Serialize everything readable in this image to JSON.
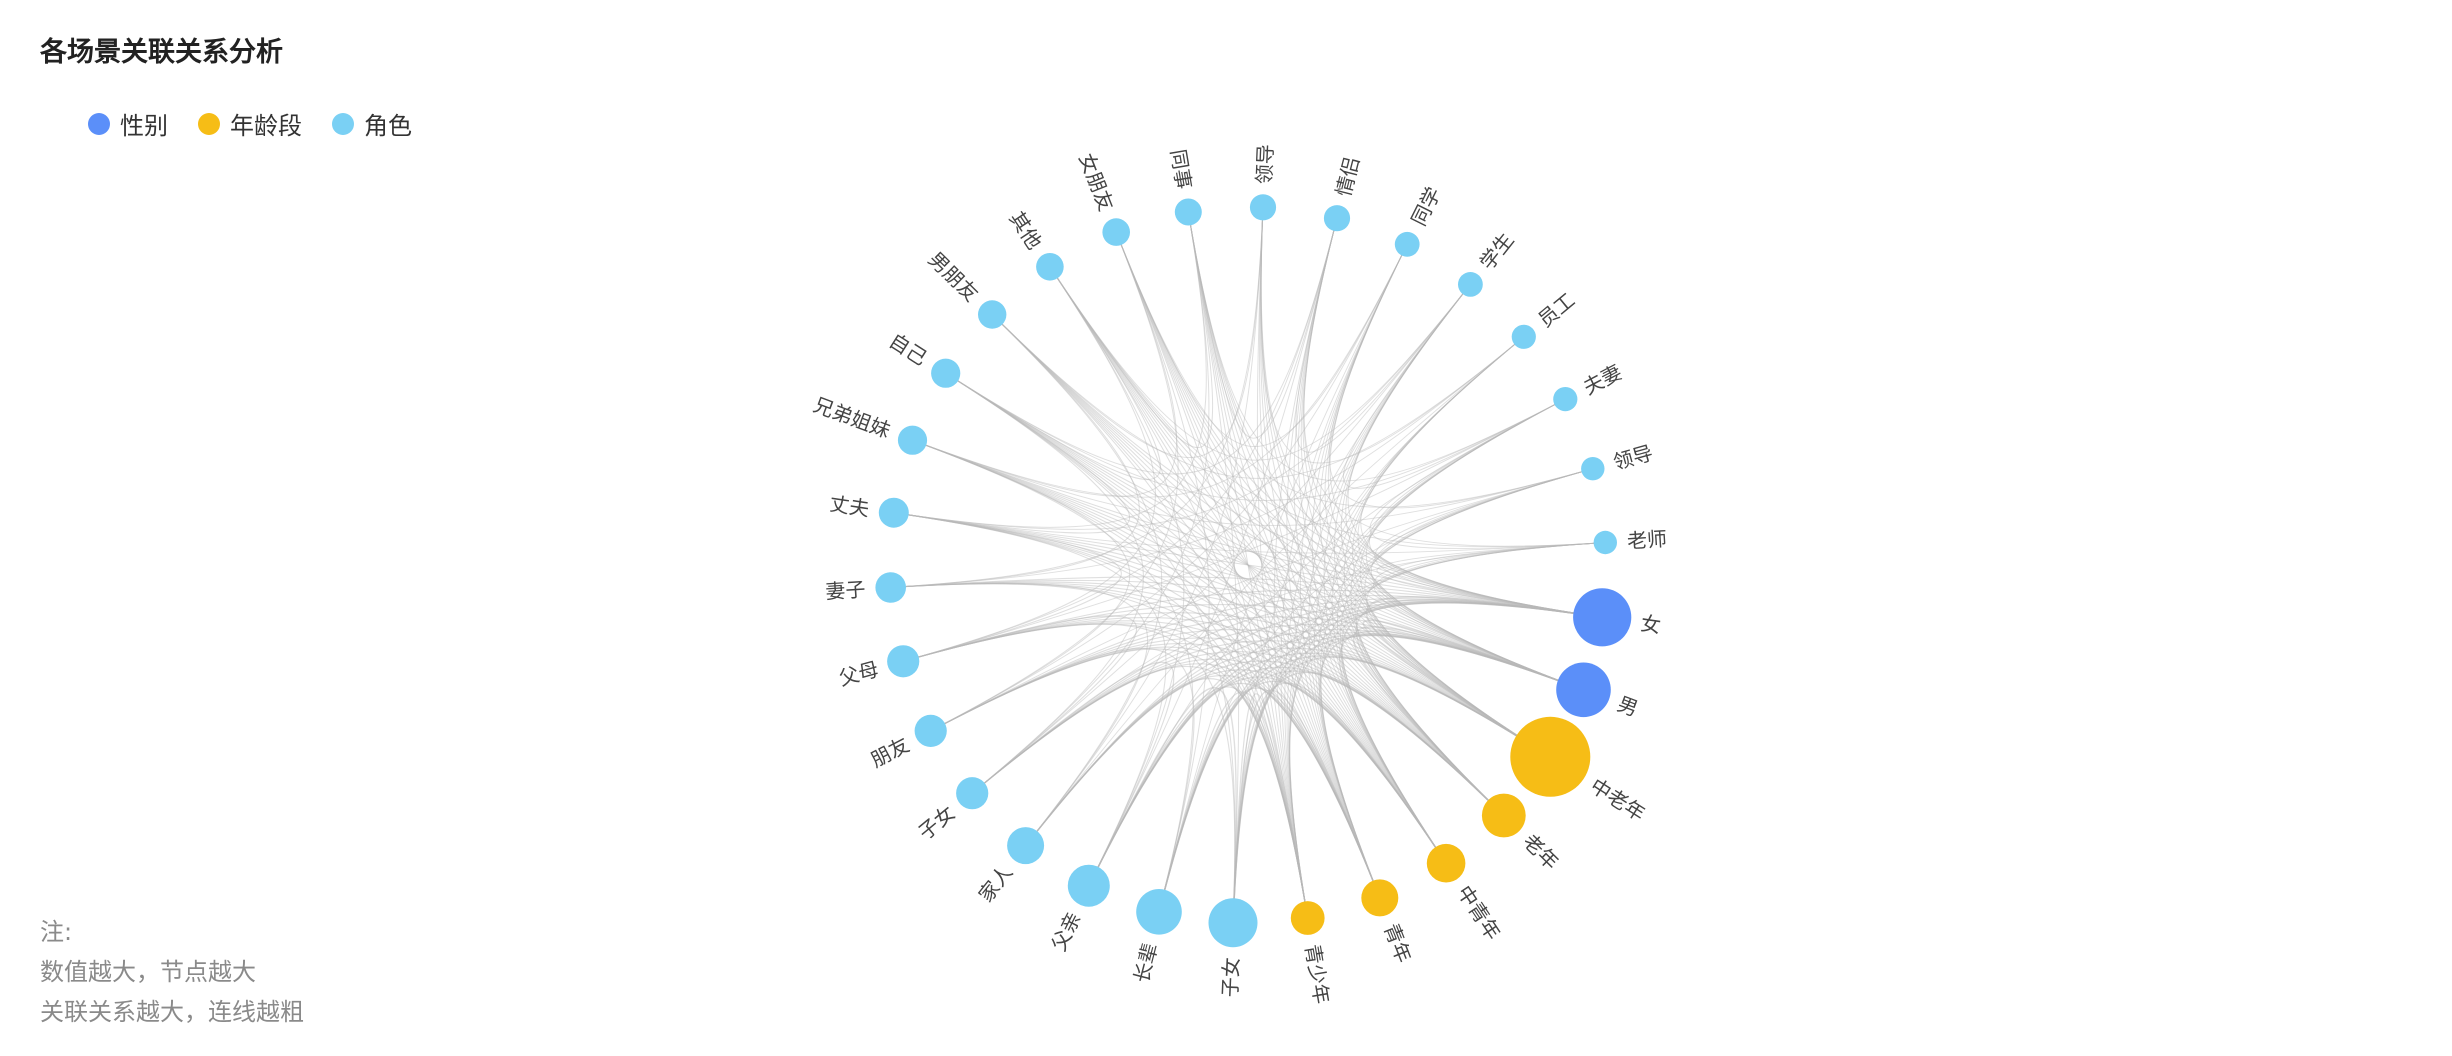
{
  "title": "各场景关联关系分析",
  "legend": {
    "items": [
      {
        "label": "性别",
        "color": "#5b8ff9"
      },
      {
        "label": "年龄段",
        "color": "#f6bd16"
      },
      {
        "label": "角色",
        "color": "#7ad0f4"
      }
    ]
  },
  "notes": {
    "heading": "注:",
    "line1": "数值越大，节点越大",
    "line2": "关联关系越大，连线越粗"
  },
  "chart_data": {
    "type": "chord",
    "title": "各场景关联关系分析",
    "categories": [
      "性别",
      "年龄段",
      "角色"
    ],
    "nodes": [
      {
        "name": "女",
        "category": "性别",
        "value": 56
      },
      {
        "name": "男",
        "category": "性别",
        "value": 52
      },
      {
        "name": "中老年",
        "category": "年龄段",
        "value": 78
      },
      {
        "name": "老年",
        "category": "年龄段",
        "value": 40
      },
      {
        "name": "中青年",
        "category": "年龄段",
        "value": 34
      },
      {
        "name": "青年",
        "category": "年龄段",
        "value": 32
      },
      {
        "name": "青少年",
        "category": "年龄段",
        "value": 28
      },
      {
        "name": "子女",
        "category": "角色",
        "value": 46
      },
      {
        "name": "长辈",
        "category": "角色",
        "value": 42
      },
      {
        "name": "父亲",
        "category": "角色",
        "value": 38
      },
      {
        "name": "家人",
        "category": "角色",
        "value": 32
      },
      {
        "name": "子女",
        "category": "角色",
        "value": 26
      },
      {
        "name": "朋友",
        "category": "角色",
        "value": 26
      },
      {
        "name": "父母",
        "category": "角色",
        "value": 26
      },
      {
        "name": "妻子",
        "category": "角色",
        "value": 24
      },
      {
        "name": "丈夫",
        "category": "角色",
        "value": 23
      },
      {
        "name": "兄弟姐妹",
        "category": "角色",
        "value": 22
      },
      {
        "name": "自己",
        "category": "角色",
        "value": 22
      },
      {
        "name": "男朋友",
        "category": "角色",
        "value": 21
      },
      {
        "name": "其他",
        "category": "角色",
        "value": 20
      },
      {
        "name": "女朋友",
        "category": "角色",
        "value": 20
      },
      {
        "name": "同事",
        "category": "角色",
        "value": 19
      },
      {
        "name": "领导",
        "category": "角色",
        "value": 18
      },
      {
        "name": "情侣",
        "category": "角色",
        "value": 18
      },
      {
        "name": "同学",
        "category": "角色",
        "value": 16
      },
      {
        "name": "学生",
        "category": "角色",
        "value": 16
      },
      {
        "name": "员工",
        "category": "角色",
        "value": 15
      },
      {
        "name": "夫妻",
        "category": "角色",
        "value": 15
      },
      {
        "name": "领导",
        "category": "角色",
        "value": 14
      },
      {
        "name": "老师",
        "category": "角色",
        "value": 14
      }
    ]
  }
}
